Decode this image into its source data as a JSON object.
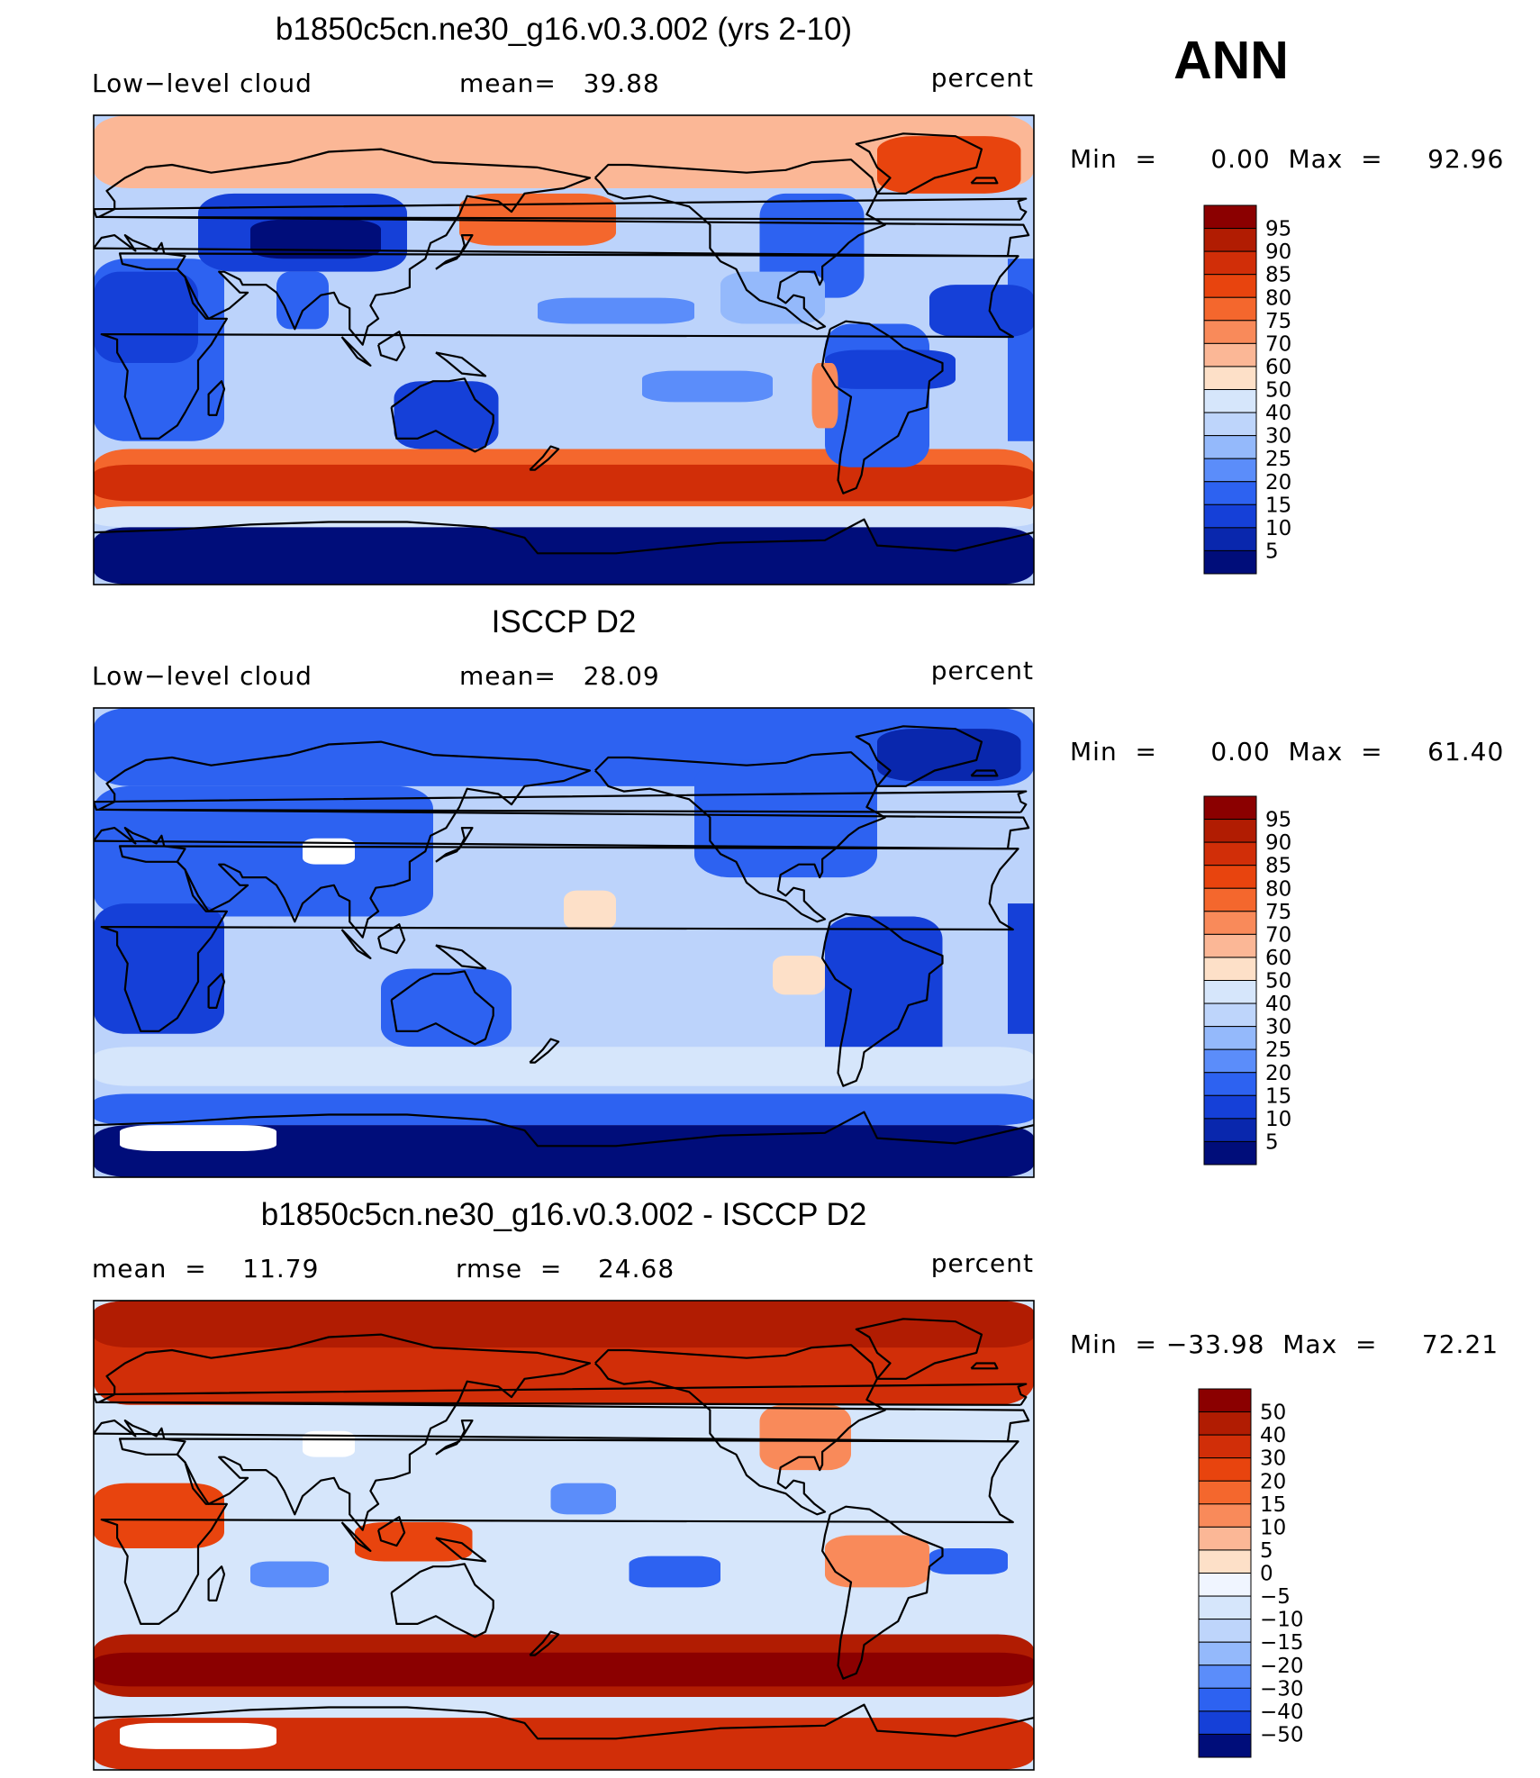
{
  "season": "ANN",
  "chart_data": [
    {
      "type": "heatmap",
      "title": "b1850c5cn.ne30_g16.v0.3.002 (yrs 2-10)",
      "variable": "Low−level cloud",
      "stat_text": "mean=   39.88",
      "units": "percent",
      "min": 0.0,
      "max": 92.96,
      "minmax_text": "Min  =      0.00  Max  =     92.96",
      "colorbar_levels": [
        "95",
        "90",
        "85",
        "80",
        "75",
        "70",
        "60",
        "50",
        "40",
        "30",
        "25",
        "20",
        "15",
        "10",
        "5"
      ],
      "colorbar_colors": [
        "#8b0000",
        "#b11c02",
        "#d12e08",
        "#e8440e",
        "#f4672d",
        "#f98a5a",
        "#fbb796",
        "#fde0c8",
        "#d6e6fb",
        "#bed5fb",
        "#94b9fb",
        "#5b8dfa",
        "#2d62f1",
        "#1540d8",
        "#0927ad",
        "#000d7a"
      ],
      "background": "#bcd3fb",
      "regions": [
        {
          "lon": [
            0,
            360
          ],
          "lat": [
            62,
            90
          ],
          "color": "#fbb796"
        },
        {
          "lon": [
            0,
            360
          ],
          "lat": [
            -65,
            -38
          ],
          "color": "#f4672d"
        },
        {
          "lon": [
            0,
            360
          ],
          "lat": [
            -58,
            -44
          ],
          "color": "#d12e08"
        },
        {
          "lon": [
            0,
            360
          ],
          "lat": [
            -68,
            -60
          ],
          "color": "#d6e6fb"
        },
        {
          "lon": [
            0,
            360
          ],
          "lat": [
            -90,
            -68
          ],
          "color": "#000d7a"
        },
        {
          "lon": [
            -10,
            50
          ],
          "lat": [
            -35,
            35
          ],
          "color": "#2d62f1"
        },
        {
          "lon": [
            0,
            40
          ],
          "lat": [
            -5,
            30
          ],
          "color": "#1540d8"
        },
        {
          "lon": [
            40,
            120
          ],
          "lat": [
            30,
            60
          ],
          "color": "#1540d8"
        },
        {
          "lon": [
            60,
            110
          ],
          "lat": [
            35,
            50
          ],
          "color": "#000d7a"
        },
        {
          "lon": [
            70,
            90
          ],
          "lat": [
            8,
            30
          ],
          "color": "#2d62f1"
        },
        {
          "lon": [
            115,
            155
          ],
          "lat": [
            -38,
            -12
          ],
          "color": "#1540d8"
        },
        {
          "lon": [
            140,
            200
          ],
          "lat": [
            40,
            60
          ],
          "color": "#f4672d"
        },
        {
          "lon": [
            255,
            295
          ],
          "lat": [
            20,
            60
          ],
          "color": "#2d62f1"
        },
        {
          "lon": [
            280,
            320
          ],
          "lat": [
            -45,
            10
          ],
          "color": "#2d62f1"
        },
        {
          "lon": [
            280,
            330
          ],
          "lat": [
            -15,
            0
          ],
          "color": "#1540d8"
        },
        {
          "lon": [
            300,
            355
          ],
          "lat": [
            60,
            82
          ],
          "color": "#e8440e"
        },
        {
          "lon": [
            275,
            285
          ],
          "lat": [
            -30,
            -5
          ],
          "color": "#f98a5a"
        },
        {
          "lon": [
            240,
            280
          ],
          "lat": [
            10,
            30
          ],
          "color": "#94b9fb"
        },
        {
          "lon": [
            210,
            260
          ],
          "lat": [
            -20,
            -8
          ],
          "color": "#5b8dfa"
        },
        {
          "lon": [
            170,
            230
          ],
          "lat": [
            10,
            20
          ],
          "color": "#5b8dfa"
        },
        {
          "lon": [
            320,
            360
          ],
          "lat": [
            5,
            25
          ],
          "color": "#1540d8"
        }
      ]
    },
    {
      "type": "heatmap",
      "title": "ISCCP D2",
      "variable": "Low−level cloud",
      "stat_text": "mean=   28.09",
      "units": "percent",
      "min": 0.0,
      "max": 61.4,
      "minmax_text": "Min  =      0.00  Max  =     61.40",
      "colorbar_levels": [
        "95",
        "90",
        "85",
        "80",
        "75",
        "70",
        "60",
        "50",
        "40",
        "30",
        "25",
        "20",
        "15",
        "10",
        "5"
      ],
      "colorbar_colors": [
        "#8b0000",
        "#b11c02",
        "#d12e08",
        "#e8440e",
        "#f4672d",
        "#f98a5a",
        "#fbb796",
        "#fde0c8",
        "#d6e6fb",
        "#bed5fb",
        "#94b9fb",
        "#5b8dfa",
        "#2d62f1",
        "#1540d8",
        "#0927ad",
        "#000d7a"
      ],
      "background": "#bcd3fb",
      "regions": [
        {
          "lon": [
            0,
            360
          ],
          "lat": [
            60,
            90
          ],
          "color": "#2d62f1"
        },
        {
          "lon": [
            0,
            130
          ],
          "lat": [
            10,
            60
          ],
          "color": "#2d62f1"
        },
        {
          "lon": [
            -10,
            50
          ],
          "lat": [
            -35,
            15
          ],
          "color": "#1540d8"
        },
        {
          "lon": [
            110,
            160
          ],
          "lat": [
            -40,
            -10
          ],
          "color": "#2d62f1"
        },
        {
          "lon": [
            230,
            300
          ],
          "lat": [
            25,
            70
          ],
          "color": "#2d62f1"
        },
        {
          "lon": [
            280,
            325
          ],
          "lat": [
            -50,
            10
          ],
          "color": "#1540d8"
        },
        {
          "lon": [
            300,
            355
          ],
          "lat": [
            62,
            82
          ],
          "color": "#0927ad"
        },
        {
          "lon": [
            0,
            360
          ],
          "lat": [
            -70,
            -58
          ],
          "color": "#2d62f1"
        },
        {
          "lon": [
            0,
            360
          ],
          "lat": [
            -90,
            -70
          ],
          "color": "#000d7a"
        },
        {
          "lon": [
            180,
            200
          ],
          "lat": [
            5,
            20
          ],
          "color": "#fde0c8"
        },
        {
          "lon": [
            260,
            280
          ],
          "lat": [
            -20,
            -5
          ],
          "color": "#fde0c8"
        },
        {
          "lon": [
            0,
            360
          ],
          "lat": [
            -55,
            -40
          ],
          "color": "#d6e6fb"
        },
        {
          "lon": [
            80,
            100
          ],
          "lat": [
            30,
            40
          ],
          "color": "#ffffff"
        },
        {
          "lon": [
            10,
            70
          ],
          "lat": [
            -80,
            -70
          ],
          "color": "#ffffff"
        }
      ]
    },
    {
      "type": "heatmap",
      "title": "b1850c5cn.ne30_g16.v0.3.002 - ISCCP D2",
      "stat_left_text": "mean  =    11.79",
      "stat_text": "rmse  =    24.68",
      "units": "percent",
      "min": -33.98,
      "max": 72.21,
      "minmax_text": "Min  = −33.98  Max  =     72.21",
      "colorbar_levels": [
        "50",
        "40",
        "30",
        "20",
        "15",
        "10",
        "5",
        "0",
        "−5",
        "−10",
        "−15",
        "−20",
        "−30",
        "−40",
        "−50"
      ],
      "colorbar_colors": [
        "#8b0000",
        "#b11c02",
        "#d12e08",
        "#e8440e",
        "#f4672d",
        "#f98a5a",
        "#fbb796",
        "#fde0c8",
        "#f0f5ff",
        "#d6e6fb",
        "#bed5fb",
        "#94b9fb",
        "#5b8dfa",
        "#2d62f1",
        "#1540d8",
        "#000d7a"
      ],
      "background": "#d6e6fb",
      "regions": [
        {
          "lon": [
            0,
            360
          ],
          "lat": [
            50,
            90
          ],
          "color": "#d12e08"
        },
        {
          "lon": [
            0,
            360
          ],
          "lat": [
            72,
            90
          ],
          "color": "#b11c02"
        },
        {
          "lon": [
            0,
            360
          ],
          "lat": [
            -62,
            -38
          ],
          "color": "#b11c02"
        },
        {
          "lon": [
            0,
            360
          ],
          "lat": [
            -58,
            -45
          ],
          "color": "#8b0000"
        },
        {
          "lon": [
            0,
            360
          ],
          "lat": [
            -90,
            -70
          ],
          "color": "#d12e08"
        },
        {
          "lon": [
            0,
            50
          ],
          "lat": [
            -5,
            20
          ],
          "color": "#e8440e"
        },
        {
          "lon": [
            100,
            145
          ],
          "lat": [
            -10,
            5
          ],
          "color": "#e8440e"
        },
        {
          "lon": [
            280,
            320
          ],
          "lat": [
            -20,
            0
          ],
          "color": "#f98a5a"
        },
        {
          "lon": [
            255,
            290
          ],
          "lat": [
            25,
            50
          ],
          "color": "#f98a5a"
        },
        {
          "lon": [
            205,
            240
          ],
          "lat": [
            -20,
            -8
          ],
          "color": "#2d62f1"
        },
        {
          "lon": [
            175,
            200
          ],
          "lat": [
            8,
            20
          ],
          "color": "#5b8dfa"
        },
        {
          "lon": [
            60,
            90
          ],
          "lat": [
            -20,
            -10
          ],
          "color": "#5b8dfa"
        },
        {
          "lon": [
            320,
            350
          ],
          "lat": [
            -15,
            -5
          ],
          "color": "#2d62f1"
        },
        {
          "lon": [
            80,
            100
          ],
          "lat": [
            30,
            40
          ],
          "color": "#ffffff"
        },
        {
          "lon": [
            10,
            70
          ],
          "lat": [
            -82,
            -72
          ],
          "color": "#ffffff"
        }
      ]
    }
  ]
}
